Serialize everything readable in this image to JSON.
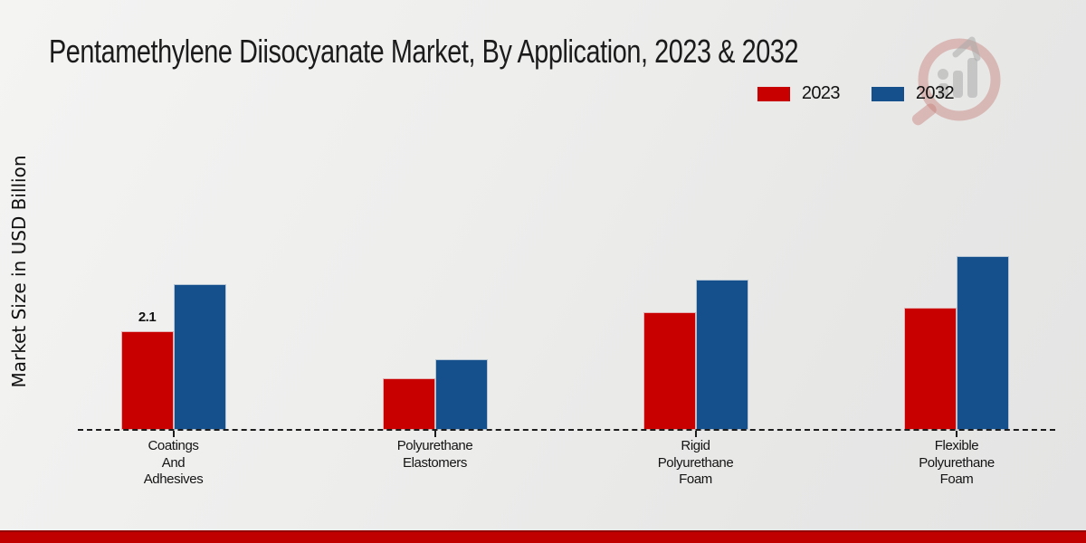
{
  "title": "Pentamethylene Diisocyanate Market, By Application, 2023 & 2032",
  "ylabel": "Market Size in USD Billion",
  "legend": [
    {
      "label": "2023",
      "color": "#c80000"
    },
    {
      "label": "2032",
      "color": "#15508c"
    }
  ],
  "colors": {
    "series_2023": "#c80000",
    "series_2032": "#15508c",
    "footer_bar": "#c00000",
    "axis": "#1c1c1c"
  },
  "watermark": {
    "name": "magnifier-bar-chart-logo"
  },
  "chart_data": {
    "type": "bar",
    "categories": [
      "Coatings And Adhesives",
      "Polyurethane Elastomers",
      "Rigid Polyurethane Foam",
      "Flexible Polyurethane Foam"
    ],
    "category_lines": [
      [
        "Coatings",
        "And",
        "Adhesives"
      ],
      [
        "Polyurethane",
        "Elastomers"
      ],
      [
        "Rigid",
        "Polyurethane",
        "Foam"
      ],
      [
        "Flexible",
        "Polyurethane",
        "Foam"
      ]
    ],
    "series": [
      {
        "name": "2023",
        "color": "#c80000",
        "values": [
          2.1,
          1.1,
          2.5,
          2.6
        ]
      },
      {
        "name": "2032",
        "color": "#15508c",
        "values": [
          3.1,
          1.5,
          3.2,
          3.7
        ]
      }
    ],
    "annotations": [
      {
        "series": "2023",
        "category_index": 0,
        "text": "2.1"
      }
    ],
    "xlabel": "",
    "ylabel": "Market Size in USD Billion",
    "ylim": [
      0,
      4
    ],
    "grid": false,
    "axis_style": "dashed-baseline-only",
    "legend_position": "top-right"
  }
}
